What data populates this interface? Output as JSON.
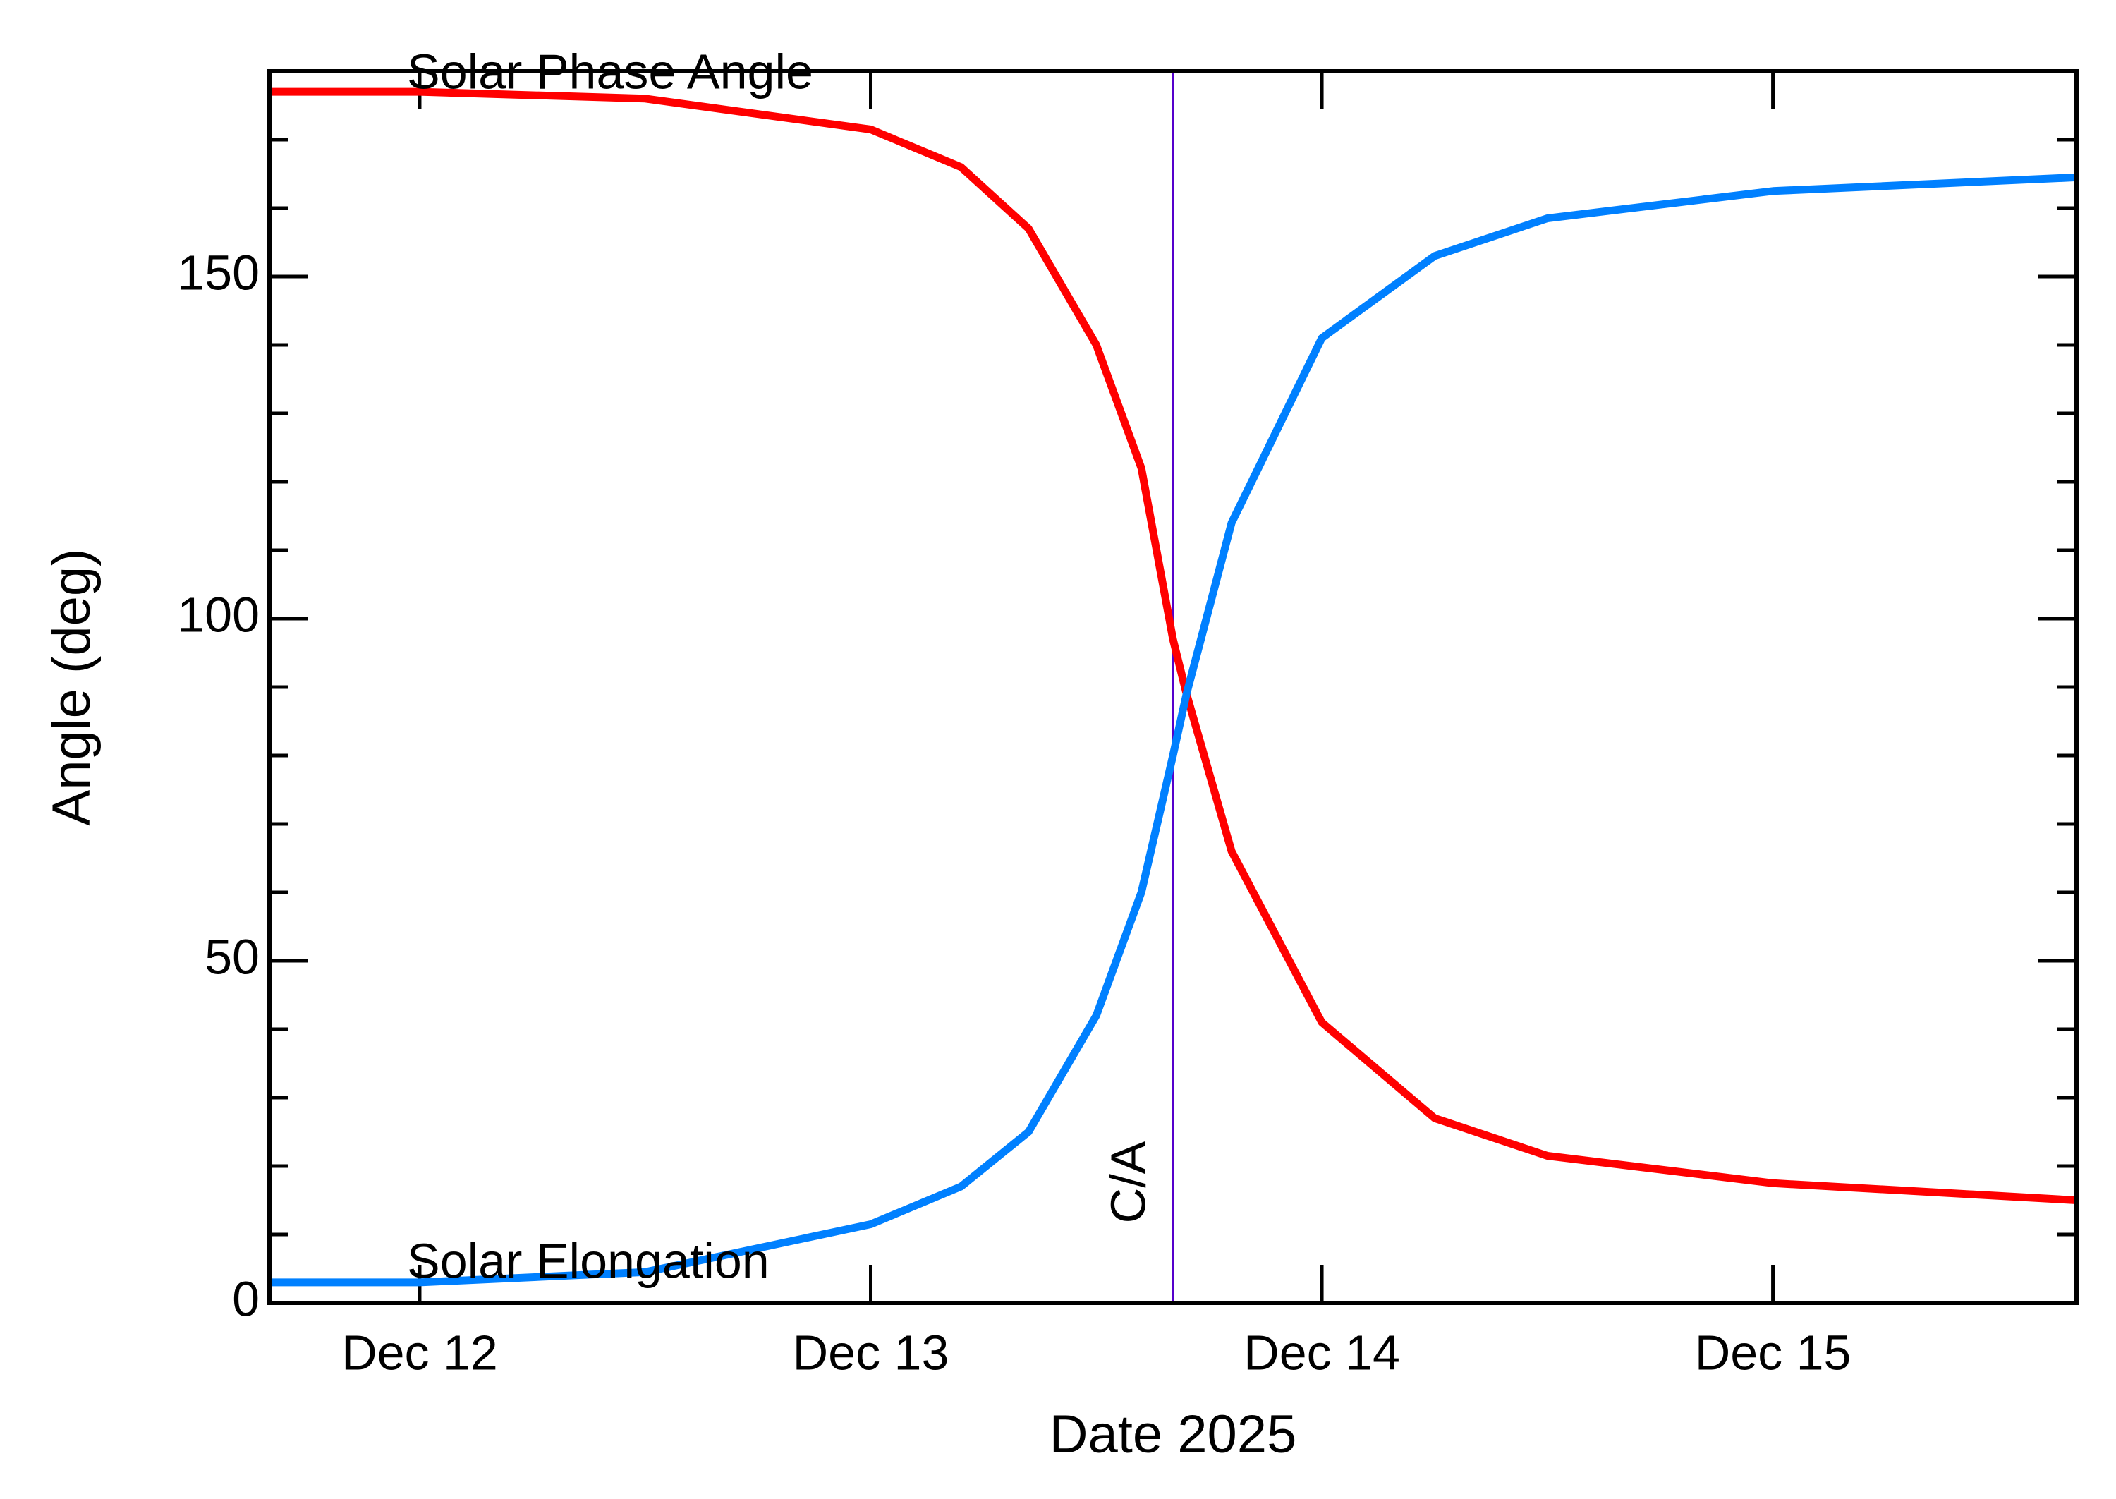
{
  "chart_data": {
    "type": "line",
    "xlabel": "Date 2025",
    "ylabel": "Angle (deg)",
    "x": [
      11.667,
      12.0,
      12.5,
      13.0,
      13.2,
      13.35,
      13.5,
      13.6,
      13.67,
      13.7,
      13.8,
      14.0,
      14.25,
      14.5,
      15.0,
      15.673
    ],
    "series": [
      {
        "name": "Solar Phase Angle",
        "color": "#ff0000",
        "values": [
          177,
          177,
          176,
          171.5,
          166,
          157,
          140,
          122,
          97,
          89,
          66,
          41,
          27,
          21.5,
          17.5,
          15
        ]
      },
      {
        "name": "Solar Elongation",
        "color": "#0080ff",
        "values": [
          3,
          3,
          4.5,
          11.5,
          17,
          25,
          42,
          60,
          80,
          89,
          114,
          141,
          153,
          158.5,
          162.5,
          164.5
        ]
      }
    ],
    "xlim": [
      11.667,
      15.673
    ],
    "xticks": [
      {
        "value": 12,
        "label": "Dec 12"
      },
      {
        "value": 13,
        "label": "Dec 13"
      },
      {
        "value": 14,
        "label": "Dec 14"
      },
      {
        "value": 15,
        "label": "Dec 15"
      }
    ],
    "ylim": [
      0,
      180
    ],
    "yticks": [
      0,
      50,
      100,
      150
    ],
    "yminorticks": [
      10,
      20,
      30,
      40,
      60,
      70,
      80,
      90,
      110,
      120,
      130,
      140,
      160,
      170
    ],
    "annotations": [
      {
        "text": "C/A",
        "x": 13.67,
        "color": "#5500cc"
      }
    ]
  }
}
